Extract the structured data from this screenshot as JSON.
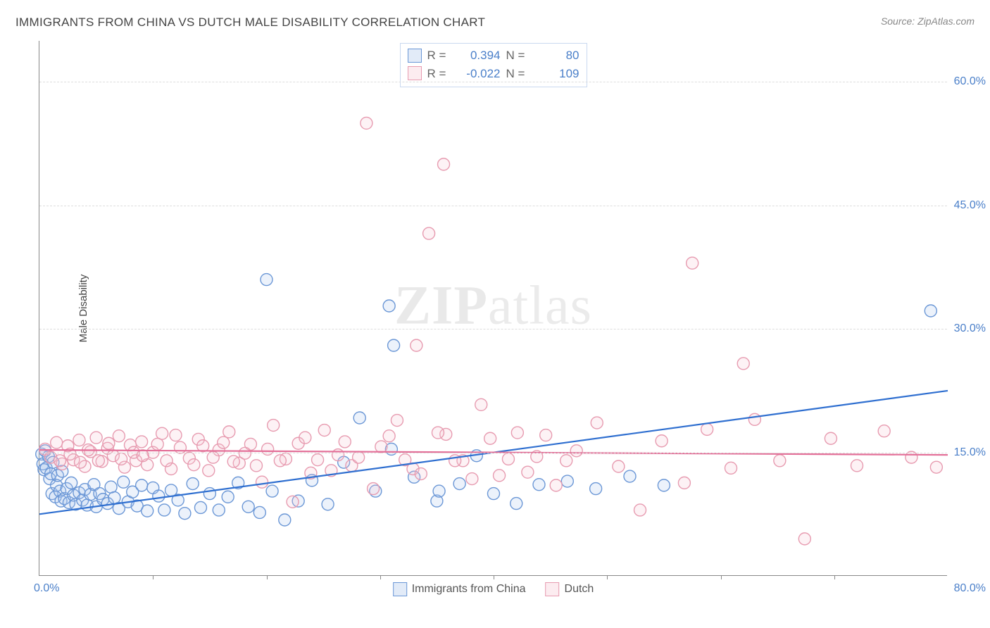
{
  "title": "IMMIGRANTS FROM CHINA VS DUTCH MALE DISABILITY CORRELATION CHART",
  "source": "Source: ZipAtlas.com",
  "ylabel": "Male Disability",
  "watermark_a": "ZIP",
  "watermark_b": "atlas",
  "chart": {
    "type": "scatter-with-regression",
    "xlim": [
      0,
      80
    ],
    "ylim": [
      0,
      65
    ],
    "x_ticks": [
      0,
      80
    ],
    "x_tick_labels": [
      "0.0%",
      "80.0%"
    ],
    "x_minor_ticks": [
      10,
      20,
      30,
      40,
      50,
      60,
      70
    ],
    "y_ticks": [
      15,
      30,
      45,
      60
    ],
    "y_tick_labels": [
      "15.0%",
      "30.0%",
      "45.0%",
      "60.0%"
    ],
    "background_color": "#ffffff",
    "grid_color": "#dddddd",
    "axis_color": "#888888",
    "text_color": "#444444",
    "value_color": "#4a7fc9",
    "marker_radius": 8.5,
    "marker_stroke_width": 1.4,
    "marker_fill_opacity": 0.22,
    "line_width": 2.2,
    "series": [
      {
        "key": "china",
        "label": "Immigrants from China",
        "color_stroke": "#6b97d6",
        "color_fill": "#a9c3eb",
        "stats": {
          "R": "0.394",
          "N": "80"
        },
        "regression": {
          "x1": 0,
          "y1": 7.5,
          "x2": 80,
          "y2": 22.5
        },
        "points": [
          [
            0.2,
            14.8
          ],
          [
            0.3,
            13.6
          ],
          [
            0.4,
            12.9
          ],
          [
            0.5,
            15.2
          ],
          [
            0.6,
            13.1
          ],
          [
            0.8,
            14.5
          ],
          [
            0.9,
            11.8
          ],
          [
            1.0,
            12.4
          ],
          [
            1.1,
            10.0
          ],
          [
            1.2,
            13.8
          ],
          [
            1.4,
            9.6
          ],
          [
            1.5,
            11.0
          ],
          [
            1.6,
            12.2
          ],
          [
            1.8,
            10.3
          ],
          [
            1.9,
            9.1
          ],
          [
            2.0,
            12.7
          ],
          [
            2.2,
            9.4
          ],
          [
            2.4,
            10.6
          ],
          [
            2.6,
            8.9
          ],
          [
            2.8,
            11.3
          ],
          [
            3.0,
            9.8
          ],
          [
            3.2,
            8.7
          ],
          [
            3.5,
            10.1
          ],
          [
            3.8,
            9.2
          ],
          [
            4.0,
            10.5
          ],
          [
            4.2,
            8.6
          ],
          [
            4.5,
            9.9
          ],
          [
            4.8,
            11.1
          ],
          [
            5.0,
            8.4
          ],
          [
            5.3,
            10.0
          ],
          [
            5.6,
            9.3
          ],
          [
            6.0,
            8.8
          ],
          [
            6.3,
            10.8
          ],
          [
            6.6,
            9.5
          ],
          [
            7.0,
            8.2
          ],
          [
            7.4,
            11.4
          ],
          [
            7.8,
            9.0
          ],
          [
            8.2,
            10.2
          ],
          [
            8.6,
            8.5
          ],
          [
            9.0,
            11.0
          ],
          [
            9.5,
            7.9
          ],
          [
            10.0,
            10.7
          ],
          [
            10.5,
            9.7
          ],
          [
            11.0,
            8.0
          ],
          [
            11.6,
            10.4
          ],
          [
            12.2,
            9.2
          ],
          [
            12.8,
            7.6
          ],
          [
            13.5,
            11.2
          ],
          [
            14.2,
            8.3
          ],
          [
            15.0,
            10.0
          ],
          [
            15.8,
            8.0
          ],
          [
            16.6,
            9.6
          ],
          [
            17.5,
            11.3
          ],
          [
            18.4,
            8.4
          ],
          [
            19.4,
            7.7
          ],
          [
            20.5,
            10.3
          ],
          [
            21.6,
            6.8
          ],
          [
            22.8,
            9.1
          ],
          [
            24.0,
            11.6
          ],
          [
            20.0,
            36.0
          ],
          [
            25.4,
            8.7
          ],
          [
            26.8,
            13.8
          ],
          [
            28.2,
            19.2
          ],
          [
            29.6,
            10.3
          ],
          [
            31.0,
            15.4
          ],
          [
            30.8,
            32.8
          ],
          [
            31.2,
            28.0
          ],
          [
            33.0,
            12.0
          ],
          [
            35.0,
            9.1
          ],
          [
            35.2,
            10.3
          ],
          [
            37.0,
            11.2
          ],
          [
            38.5,
            14.6
          ],
          [
            40.0,
            10.0
          ],
          [
            42.0,
            8.8
          ],
          [
            44.0,
            11.1
          ],
          [
            46.5,
            11.5
          ],
          [
            49.0,
            10.6
          ],
          [
            52.0,
            12.1
          ],
          [
            55.0,
            11.0
          ],
          [
            78.5,
            32.2
          ]
        ]
      },
      {
        "key": "dutch",
        "label": "Dutch",
        "color_stroke": "#e79bb0",
        "color_fill": "#f7c6d3",
        "stats": {
          "R": "-0.022",
          "N": "109"
        },
        "regression": {
          "x1": 0,
          "y1": 15.3,
          "x2": 80,
          "y2": 14.7
        },
        "points": [
          [
            0.5,
            15.4
          ],
          [
            1.0,
            14.4
          ],
          [
            1.5,
            16.2
          ],
          [
            2.0,
            13.6
          ],
          [
            2.5,
            15.8
          ],
          [
            3.0,
            14.1
          ],
          [
            3.5,
            16.5
          ],
          [
            4.0,
            13.3
          ],
          [
            4.5,
            15.1
          ],
          [
            5.0,
            16.8
          ],
          [
            5.5,
            13.9
          ],
          [
            6.0,
            15.5
          ],
          [
            6.5,
            14.6
          ],
          [
            7.0,
            17.0
          ],
          [
            7.5,
            13.2
          ],
          [
            8.0,
            15.9
          ],
          [
            8.5,
            14.0
          ],
          [
            9.0,
            16.3
          ],
          [
            9.5,
            13.5
          ],
          [
            10.0,
            15.0
          ],
          [
            10.8,
            17.3
          ],
          [
            11.6,
            13.0
          ],
          [
            12.4,
            15.6
          ],
          [
            13.2,
            14.3
          ],
          [
            14.0,
            16.6
          ],
          [
            14.9,
            12.8
          ],
          [
            15.8,
            15.3
          ],
          [
            16.7,
            17.5
          ],
          [
            17.6,
            13.7
          ],
          [
            18.6,
            16.0
          ],
          [
            19.6,
            11.4
          ],
          [
            20.6,
            18.3
          ],
          [
            21.7,
            14.2
          ],
          [
            22.8,
            16.1
          ],
          [
            23.9,
            12.5
          ],
          [
            25.1,
            17.7
          ],
          [
            26.3,
            14.7
          ],
          [
            27.5,
            13.4
          ],
          [
            28.8,
            55.0
          ],
          [
            30.1,
            15.7
          ],
          [
            31.5,
            18.9
          ],
          [
            32.9,
            13.0
          ],
          [
            34.3,
            41.6
          ],
          [
            33.2,
            28.0
          ],
          [
            35.8,
            17.2
          ],
          [
            35.6,
            50.0
          ],
          [
            37.3,
            14.0
          ],
          [
            38.9,
            20.8
          ],
          [
            40.5,
            12.2
          ],
          [
            42.1,
            17.4
          ],
          [
            43.8,
            14.5
          ],
          [
            45.5,
            11.0
          ],
          [
            47.3,
            15.2
          ],
          [
            49.1,
            18.6
          ],
          [
            51.0,
            13.3
          ],
          [
            52.9,
            8.0
          ],
          [
            54.8,
            16.4
          ],
          [
            56.8,
            11.3
          ],
          [
            57.5,
            38.0
          ],
          [
            58.8,
            17.8
          ],
          [
            60.9,
            13.1
          ],
          [
            63.0,
            19.0
          ],
          [
            62.0,
            25.8
          ],
          [
            65.2,
            14.0
          ],
          [
            67.4,
            4.5
          ],
          [
            69.7,
            16.7
          ],
          [
            72.0,
            13.4
          ],
          [
            74.4,
            17.6
          ],
          [
            76.8,
            14.4
          ],
          [
            79.0,
            13.2
          ],
          [
            1.8,
            14.0
          ],
          [
            2.7,
            14.8
          ],
          [
            3.6,
            13.8
          ],
          [
            4.3,
            15.3
          ],
          [
            5.2,
            14.0
          ],
          [
            6.1,
            16.1
          ],
          [
            7.2,
            14.2
          ],
          [
            8.3,
            15.0
          ],
          [
            9.1,
            14.6
          ],
          [
            10.4,
            16.0
          ],
          [
            11.2,
            14.0
          ],
          [
            12.0,
            17.1
          ],
          [
            13.6,
            13.5
          ],
          [
            14.4,
            15.8
          ],
          [
            15.3,
            14.4
          ],
          [
            16.2,
            16.2
          ],
          [
            17.1,
            13.9
          ],
          [
            18.1,
            14.9
          ],
          [
            19.1,
            13.4
          ],
          [
            20.1,
            15.4
          ],
          [
            21.2,
            14.0
          ],
          [
            22.3,
            9.0
          ],
          [
            23.4,
            16.8
          ],
          [
            24.5,
            14.1
          ],
          [
            25.7,
            12.8
          ],
          [
            26.9,
            16.3
          ],
          [
            28.1,
            14.4
          ],
          [
            29.4,
            10.6
          ],
          [
            30.8,
            17.0
          ],
          [
            32.2,
            14.1
          ],
          [
            33.6,
            12.4
          ],
          [
            35.1,
            17.4
          ],
          [
            36.6,
            14.0
          ],
          [
            38.1,
            11.8
          ],
          [
            39.7,
            16.7
          ],
          [
            41.3,
            14.2
          ],
          [
            43.0,
            12.6
          ],
          [
            44.6,
            17.1
          ],
          [
            46.4,
            14.0
          ]
        ]
      }
    ]
  },
  "stats_legend": {
    "labels": {
      "R": "R =",
      "N": "N ="
    }
  },
  "bottom_legend_labels": [
    "Immigrants from China",
    "Dutch"
  ]
}
